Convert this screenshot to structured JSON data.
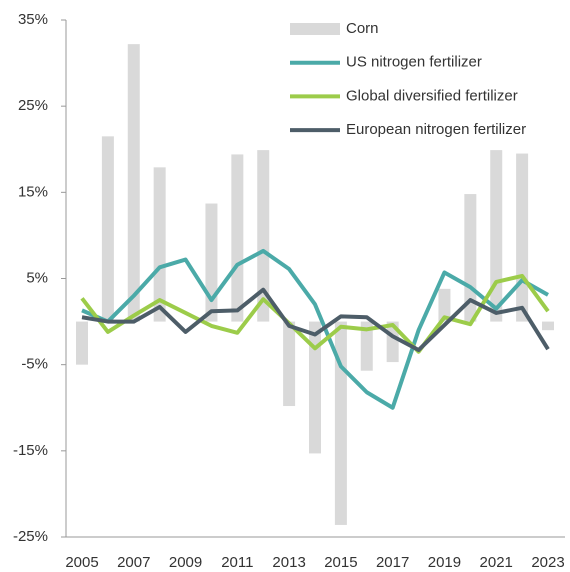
{
  "chart_data": {
    "type": "bar+line",
    "categories": [
      "2005",
      null,
      "2007",
      null,
      "2009",
      null,
      "2011",
      null,
      "2013",
      null,
      "2015",
      null,
      "2017",
      null,
      "2019",
      null,
      "2021",
      null,
      "2023"
    ],
    "series": [
      {
        "name": "Corn",
        "type": "bar",
        "color": "#d9d9d9",
        "values": [
          -5,
          21.5,
          32.2,
          17.9,
          0,
          13.7,
          19.4,
          19.9,
          -9.8,
          -15.3,
          -23.6,
          -5.7,
          -4.7,
          0,
          3.8,
          14.8,
          19.9,
          19.5,
          -1
        ]
      },
      {
        "name": "US nitrogen fertilizer",
        "type": "line",
        "color": "#4baaa8",
        "values": [
          1.3,
          0,
          3,
          6.3,
          7.2,
          2.5,
          6.6,
          8.2,
          6.1,
          2,
          -5.2,
          -8.2,
          -10,
          -1,
          5.7,
          4,
          1.5,
          4.8,
          3.1
        ]
      },
      {
        "name": "Global diversified fertilizer",
        "type": "line",
        "color": "#9ccc4a",
        "values": [
          2.7,
          -1.2,
          0.7,
          2.5,
          1,
          -0.5,
          -1.3,
          2.6,
          -0.2,
          -3.1,
          -0.6,
          -0.9,
          -0.4,
          -3.5,
          0.5,
          -0.3,
          4.6,
          5.3,
          1.2
        ]
      },
      {
        "name": "European nitrogen fertilizer",
        "type": "line",
        "color": "#4d5d68",
        "values": [
          0.5,
          0,
          0,
          1.7,
          -1.2,
          1.2,
          1.3,
          3.7,
          -0.5,
          -1.5,
          0.6,
          0.5,
          -1.7,
          -3.3,
          -0.4,
          2.5,
          1,
          1.6,
          -3.2
        ]
      }
    ],
    "ylim": [
      -25,
      35
    ],
    "yticks": [
      {
        "value": 35,
        "label": "35%"
      },
      {
        "value": 25,
        "label": "25%"
      },
      {
        "value": 15,
        "label": "15%"
      },
      {
        "value": 5,
        "label": "5%"
      },
      {
        "value": -5,
        "label": "-5%"
      },
      {
        "value": -15,
        "label": "-15%"
      },
      {
        "value": -25,
        "label": "-25%"
      }
    ],
    "legend": "upper right"
  }
}
